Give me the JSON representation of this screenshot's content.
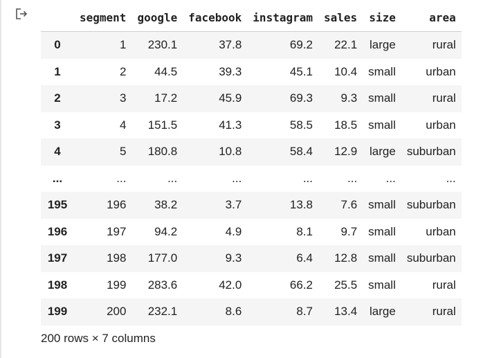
{
  "table": {
    "columns": [
      "",
      "segment",
      "google",
      "facebook",
      "instagram",
      "sales",
      "size",
      "area"
    ],
    "rows": [
      [
        "0",
        "1",
        "230.1",
        "37.8",
        "69.2",
        "22.1",
        "large",
        "rural"
      ],
      [
        "1",
        "2",
        "44.5",
        "39.3",
        "45.1",
        "10.4",
        "small",
        "urban"
      ],
      [
        "2",
        "3",
        "17.2",
        "45.9",
        "69.3",
        "9.3",
        "small",
        "rural"
      ],
      [
        "3",
        "4",
        "151.5",
        "41.3",
        "58.5",
        "18.5",
        "small",
        "urban"
      ],
      [
        "4",
        "5",
        "180.8",
        "10.8",
        "58.4",
        "12.9",
        "large",
        "suburban"
      ],
      [
        "...",
        "...",
        "...",
        "...",
        "...",
        "...",
        "...",
        "..."
      ],
      [
        "195",
        "196",
        "38.2",
        "3.7",
        "13.8",
        "7.6",
        "small",
        "suburban"
      ],
      [
        "196",
        "197",
        "94.2",
        "4.9",
        "8.1",
        "9.7",
        "small",
        "urban"
      ],
      [
        "197",
        "198",
        "177.0",
        "9.3",
        "6.4",
        "12.8",
        "small",
        "suburban"
      ],
      [
        "198",
        "199",
        "283.6",
        "42.0",
        "66.2",
        "25.5",
        "small",
        "rural"
      ],
      [
        "199",
        "200",
        "232.1",
        "8.6",
        "8.7",
        "13.4",
        "large",
        "rural"
      ]
    ]
  },
  "footer": {
    "shape_text": "200 rows × 7 columns"
  },
  "icons": {
    "output": "output-arrow-icon"
  }
}
